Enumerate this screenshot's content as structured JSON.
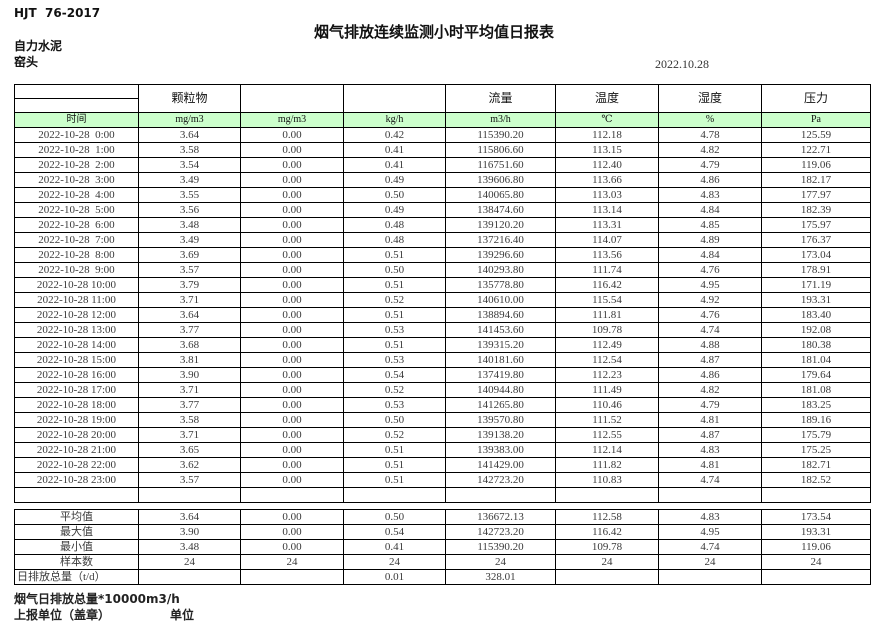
{
  "header": {
    "standard": "HJT  76-2017",
    "title": "烟气排放连续监测小时平均值日报表",
    "company": "自力水泥",
    "location": "窑头",
    "date": "2022.10.28"
  },
  "table": {
    "group_headers": [
      "",
      "颗粒物",
      "",
      "",
      "流量",
      "温度",
      "湿度",
      "压力"
    ],
    "unit_row": [
      "时间",
      "mg/m3",
      "mg/m3",
      "kg/h",
      "m3/h",
      "℃",
      "%",
      "Pa"
    ],
    "rows": [
      [
        "2022-10-28  0:00",
        "3.64",
        "0.00",
        "0.42",
        "115390.20",
        "112.18",
        "4.78",
        "125.59"
      ],
      [
        "2022-10-28  1:00",
        "3.58",
        "0.00",
        "0.41",
        "115806.60",
        "113.15",
        "4.82",
        "122.71"
      ],
      [
        "2022-10-28  2:00",
        "3.54",
        "0.00",
        "0.41",
        "116751.60",
        "112.40",
        "4.79",
        "119.06"
      ],
      [
        "2022-10-28  3:00",
        "3.49",
        "0.00",
        "0.49",
        "139606.80",
        "113.66",
        "4.86",
        "182.17"
      ],
      [
        "2022-10-28  4:00",
        "3.55",
        "0.00",
        "0.50",
        "140065.80",
        "113.03",
        "4.83",
        "177.97"
      ],
      [
        "2022-10-28  5:00",
        "3.56",
        "0.00",
        "0.49",
        "138474.60",
        "113.14",
        "4.84",
        "182.39"
      ],
      [
        "2022-10-28  6:00",
        "3.48",
        "0.00",
        "0.48",
        "139120.20",
        "113.31",
        "4.85",
        "175.97"
      ],
      [
        "2022-10-28  7:00",
        "3.49",
        "0.00",
        "0.48",
        "137216.40",
        "114.07",
        "4.89",
        "176.37"
      ],
      [
        "2022-10-28  8:00",
        "3.69",
        "0.00",
        "0.51",
        "139296.60",
        "113.56",
        "4.84",
        "173.04"
      ],
      [
        "2022-10-28  9:00",
        "3.57",
        "0.00",
        "0.50",
        "140293.80",
        "111.74",
        "4.76",
        "178.91"
      ],
      [
        "2022-10-28 10:00",
        "3.79",
        "0.00",
        "0.51",
        "135778.80",
        "116.42",
        "4.95",
        "171.19"
      ],
      [
        "2022-10-28 11:00",
        "3.71",
        "0.00",
        "0.52",
        "140610.00",
        "115.54",
        "4.92",
        "193.31"
      ],
      [
        "2022-10-28 12:00",
        "3.64",
        "0.00",
        "0.51",
        "138894.60",
        "111.81",
        "4.76",
        "183.40"
      ],
      [
        "2022-10-28 13:00",
        "3.77",
        "0.00",
        "0.53",
        "141453.60",
        "109.78",
        "4.74",
        "192.08"
      ],
      [
        "2022-10-28 14:00",
        "3.68",
        "0.00",
        "0.51",
        "139315.20",
        "112.49",
        "4.88",
        "180.38"
      ],
      [
        "2022-10-28 15:00",
        "3.81",
        "0.00",
        "0.53",
        "140181.60",
        "112.54",
        "4.87",
        "181.04"
      ],
      [
        "2022-10-28 16:00",
        "3.90",
        "0.00",
        "0.54",
        "137419.80",
        "112.23",
        "4.86",
        "179.64"
      ],
      [
        "2022-10-28 17:00",
        "3.71",
        "0.00",
        "0.52",
        "140944.80",
        "111.49",
        "4.82",
        "181.08"
      ],
      [
        "2022-10-28 18:00",
        "3.77",
        "0.00",
        "0.53",
        "141265.80",
        "110.46",
        "4.79",
        "183.25"
      ],
      [
        "2022-10-28 19:00",
        "3.58",
        "0.00",
        "0.50",
        "139570.80",
        "111.52",
        "4.81",
        "189.16"
      ],
      [
        "2022-10-28 20:00",
        "3.71",
        "0.00",
        "0.52",
        "139138.20",
        "112.55",
        "4.87",
        "175.79"
      ],
      [
        "2022-10-28 21:00",
        "3.65",
        "0.00",
        "0.51",
        "139383.00",
        "112.14",
        "4.83",
        "175.25"
      ],
      [
        "2022-10-28 22:00",
        "3.62",
        "0.00",
        "0.51",
        "141429.00",
        "111.82",
        "4.81",
        "182.71"
      ],
      [
        "2022-10-28 23:00",
        "3.57",
        "0.00",
        "0.51",
        "142723.20",
        "110.83",
        "4.74",
        "182.52"
      ]
    ],
    "summary_rows": [
      [
        "平均值",
        "3.64",
        "0.00",
        "0.50",
        "136672.13",
        "112.58",
        "4.83",
        "173.54"
      ],
      [
        "最大值",
        "3.90",
        "0.00",
        "0.54",
        "142723.20",
        "116.42",
        "4.95",
        "193.31"
      ],
      [
        "最小值",
        "3.48",
        "0.00",
        "0.41",
        "115390.20",
        "109.78",
        "4.74",
        "119.06"
      ],
      [
        "样本数",
        "24",
        "24",
        "24",
        "24",
        "24",
        "24",
        "24"
      ],
      [
        "日排放总量（t/d）",
        "",
        "",
        "0.01",
        "328.01",
        "",
        "",
        ""
      ]
    ]
  },
  "footer": {
    "note": "烟气日排放总量*10000m3/h",
    "report_unit_label": "上报单位（盖章）",
    "unit_label": "单位"
  },
  "colors": {
    "header_green": "#ccffcc",
    "border": "#000000"
  }
}
